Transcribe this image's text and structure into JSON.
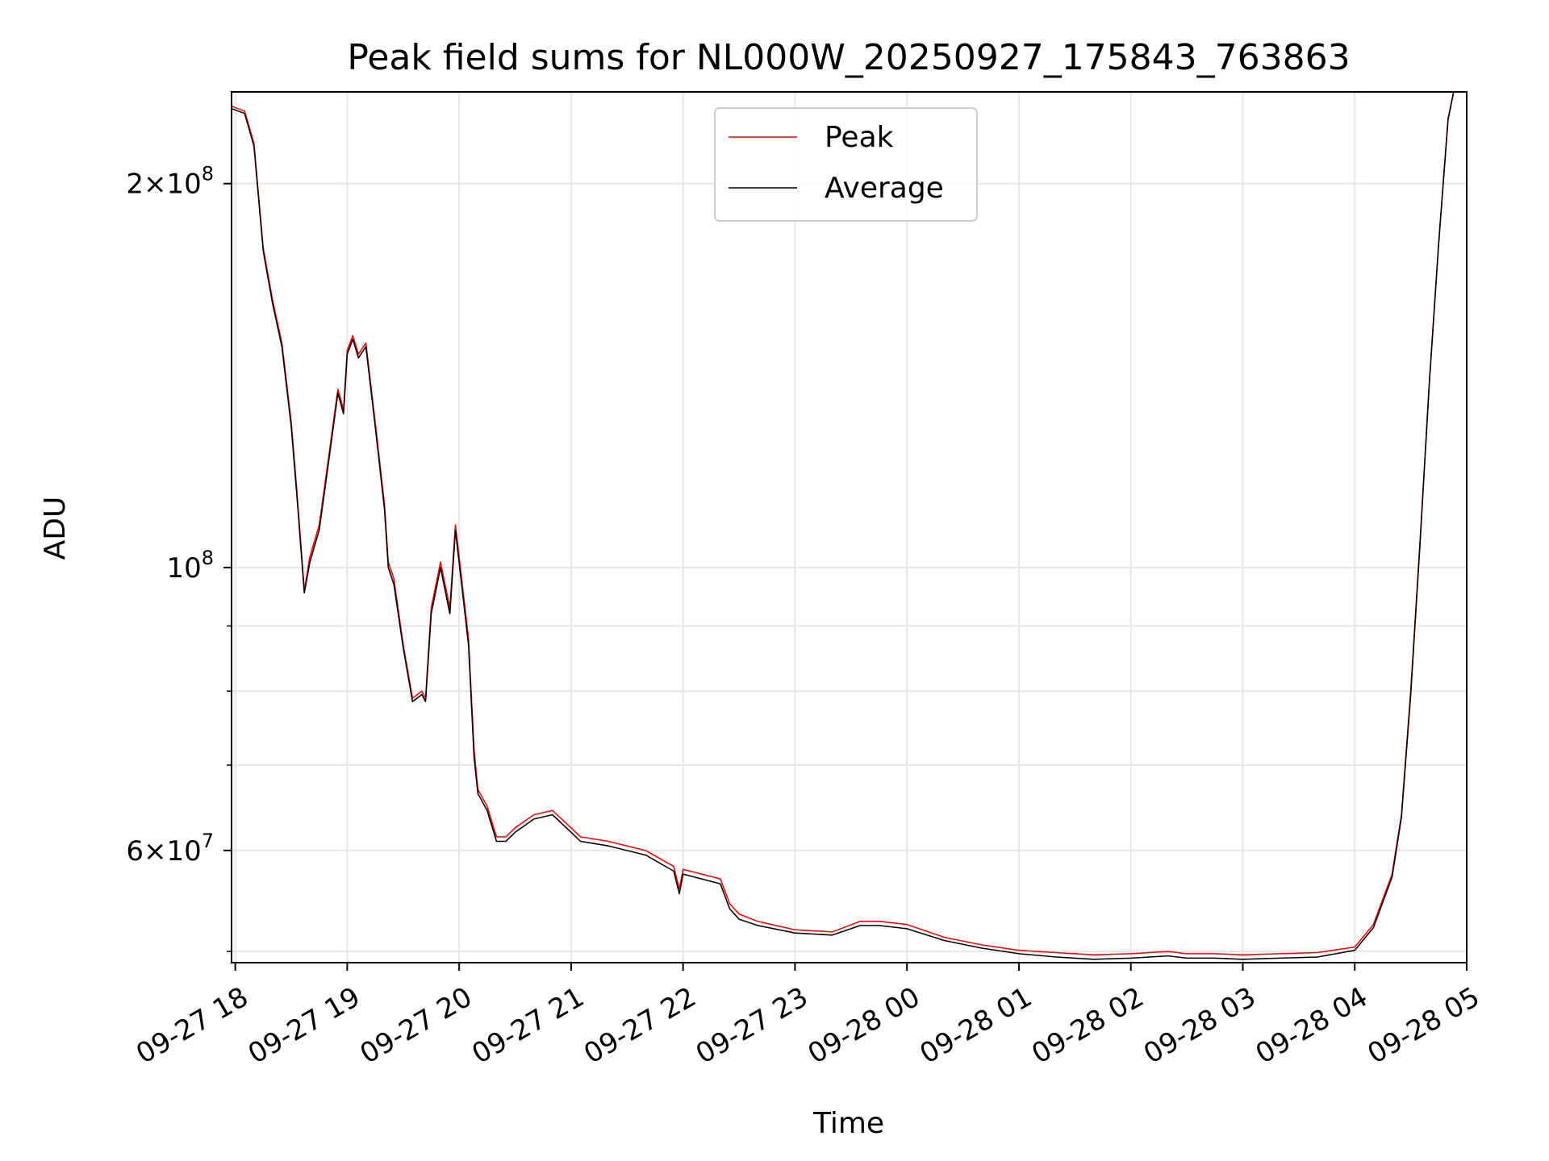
{
  "chart_data": {
    "type": "line",
    "title": "Peak field sums for NL000W_20250927_175843_763863",
    "xlabel": "Time",
    "ylabel": "ADU",
    "x_scale": "time",
    "y_scale": "log",
    "xlim": [
      "2025-09-27 17:58",
      "2025-09-28 05:00"
    ],
    "ylim": [
      49000000,
      236000000
    ],
    "grid": true,
    "legend_position": "top-center",
    "x_ticks": [
      {
        "value": "2025-09-27 18:00",
        "label": "09-27 18"
      },
      {
        "value": "2025-09-27 19:00",
        "label": "09-27 19"
      },
      {
        "value": "2025-09-27 20:00",
        "label": "09-27 20"
      },
      {
        "value": "2025-09-27 21:00",
        "label": "09-27 21"
      },
      {
        "value": "2025-09-27 22:00",
        "label": "09-27 22"
      },
      {
        "value": "2025-09-27 23:00",
        "label": "09-27 23"
      },
      {
        "value": "2025-09-28 00:00",
        "label": "09-28 00"
      },
      {
        "value": "2025-09-28 01:00",
        "label": "09-28 01"
      },
      {
        "value": "2025-09-28 02:00",
        "label": "09-28 02"
      },
      {
        "value": "2025-09-28 03:00",
        "label": "09-28 03"
      },
      {
        "value": "2025-09-28 04:00",
        "label": "09-28 04"
      },
      {
        "value": "2025-09-28 05:00",
        "label": "09-28 05"
      }
    ],
    "y_major_ticks": [
      {
        "value": 100000000,
        "base": "10",
        "exp": "8"
      },
      {
        "value": 200000000,
        "mant": "2",
        "base": "10",
        "exp": "8"
      },
      {
        "value": 60000000,
        "mant": "6",
        "base": "10",
        "exp": "7"
      }
    ],
    "y_minor_ticks": [
      50000000,
      70000000,
      80000000,
      90000000
    ],
    "series": [
      {
        "name": "Peak",
        "color": "#ff0000",
        "line_width": 1.2,
        "x": [
          "2025-09-27 17:58",
          "2025-09-27 18:05",
          "2025-09-27 18:10",
          "2025-09-27 18:15",
          "2025-09-27 18:20",
          "2025-09-27 18:25",
          "2025-09-27 18:30",
          "2025-09-27 18:33",
          "2025-09-27 18:37",
          "2025-09-27 18:40",
          "2025-09-27 18:45",
          "2025-09-27 18:50",
          "2025-09-27 18:55",
          "2025-09-27 18:58",
          "2025-09-27 19:00",
          "2025-09-27 19:03",
          "2025-09-27 19:06",
          "2025-09-27 19:10",
          "2025-09-27 19:15",
          "2025-09-27 19:20",
          "2025-09-27 19:22",
          "2025-09-27 19:25",
          "2025-09-27 19:30",
          "2025-09-27 19:35",
          "2025-09-27 19:40",
          "2025-09-27 19:42",
          "2025-09-27 19:45",
          "2025-09-27 19:50",
          "2025-09-27 19:55",
          "2025-09-27 19:58",
          "2025-09-27 20:05",
          "2025-09-27 20:08",
          "2025-09-27 20:10",
          "2025-09-27 20:15",
          "2025-09-27 20:20",
          "2025-09-27 20:25",
          "2025-09-27 20:30",
          "2025-09-27 20:40",
          "2025-09-27 20:50",
          "2025-09-27 21:00",
          "2025-09-27 21:05",
          "2025-09-27 21:20",
          "2025-09-27 21:40",
          "2025-09-27 21:55",
          "2025-09-27 21:58",
          "2025-09-27 22:00",
          "2025-09-27 22:20",
          "2025-09-27 22:25",
          "2025-09-27 22:30",
          "2025-09-27 22:40",
          "2025-09-27 23:00",
          "2025-09-27 23:20",
          "2025-09-27 23:35",
          "2025-09-27 23:45",
          "2025-09-28 00:00",
          "2025-09-28 00:20",
          "2025-09-28 00:40",
          "2025-09-28 01:00",
          "2025-09-28 01:20",
          "2025-09-28 01:40",
          "2025-09-28 02:00",
          "2025-09-28 02:20",
          "2025-09-28 02:30",
          "2025-09-28 02:45",
          "2025-09-28 03:00",
          "2025-09-28 03:20",
          "2025-09-28 03:40",
          "2025-09-28 04:00",
          "2025-09-28 04:10",
          "2025-09-28 04:20",
          "2025-09-28 04:25",
          "2025-09-28 04:30",
          "2025-09-28 04:35",
          "2025-09-28 04:40",
          "2025-09-28 04:45",
          "2025-09-28 04:50",
          "2025-09-28 04:53"
        ],
        "y": [
          230000000,
          228000000,
          215000000,
          178000000,
          162000000,
          150000000,
          130000000,
          115000000,
          96000000,
          102000000,
          108000000,
          122000000,
          138000000,
          133000000,
          148000000,
          152000000,
          147000000,
          150000000,
          130000000,
          112000000,
          101000000,
          98000000,
          87000000,
          79000000,
          80000000,
          79000000,
          93000000,
          101000000,
          93000000,
          108000000,
          88000000,
          72000000,
          67000000,
          65000000,
          61500000,
          61500000,
          62500000,
          64000000,
          64500000,
          62500000,
          61500000,
          61000000,
          60000000,
          58300000,
          56000000,
          58000000,
          57000000,
          54500000,
          53500000,
          52800000,
          52000000,
          51800000,
          52800000,
          52800000,
          52500000,
          51300000,
          50600000,
          50100000,
          49900000,
          49700000,
          49800000,
          50000000,
          49800000,
          49800000,
          49700000,
          49800000,
          49900000,
          50400000,
          52500000,
          57500000,
          64000000,
          80000000,
          105000000,
          140000000,
          180000000,
          225000000,
          236000000
        ]
      },
      {
        "name": "Average",
        "color": "#000000",
        "line_width": 1.2,
        "x": [
          "2025-09-27 17:58",
          "2025-09-27 18:05",
          "2025-09-27 18:10",
          "2025-09-27 18:15",
          "2025-09-27 18:20",
          "2025-09-27 18:25",
          "2025-09-27 18:30",
          "2025-09-27 18:33",
          "2025-09-27 18:37",
          "2025-09-27 18:40",
          "2025-09-27 18:45",
          "2025-09-27 18:50",
          "2025-09-27 18:55",
          "2025-09-27 18:58",
          "2025-09-27 19:00",
          "2025-09-27 19:03",
          "2025-09-27 19:06",
          "2025-09-27 19:10",
          "2025-09-27 19:15",
          "2025-09-27 19:20",
          "2025-09-27 19:22",
          "2025-09-27 19:25",
          "2025-09-27 19:30",
          "2025-09-27 19:35",
          "2025-09-27 19:40",
          "2025-09-27 19:42",
          "2025-09-27 19:45",
          "2025-09-27 19:50",
          "2025-09-27 19:55",
          "2025-09-27 19:58",
          "2025-09-27 20:05",
          "2025-09-27 20:08",
          "2025-09-27 20:10",
          "2025-09-27 20:15",
          "2025-09-27 20:20",
          "2025-09-27 20:25",
          "2025-09-27 20:30",
          "2025-09-27 20:40",
          "2025-09-27 20:50",
          "2025-09-27 21:00",
          "2025-09-27 21:05",
          "2025-09-27 21:20",
          "2025-09-27 21:40",
          "2025-09-27 21:55",
          "2025-09-27 21:58",
          "2025-09-27 22:00",
          "2025-09-27 22:20",
          "2025-09-27 22:25",
          "2025-09-27 22:30",
          "2025-09-27 22:40",
          "2025-09-27 23:00",
          "2025-09-27 23:20",
          "2025-09-27 23:35",
          "2025-09-27 23:45",
          "2025-09-28 00:00",
          "2025-09-28 00:20",
          "2025-09-28 00:40",
          "2025-09-28 01:00",
          "2025-09-28 01:20",
          "2025-09-28 01:40",
          "2025-09-28 02:00",
          "2025-09-28 02:20",
          "2025-09-28 02:30",
          "2025-09-28 02:45",
          "2025-09-28 03:00",
          "2025-09-28 03:20",
          "2025-09-28 03:40",
          "2025-09-28 04:00",
          "2025-09-28 04:10",
          "2025-09-28 04:20",
          "2025-09-28 04:25",
          "2025-09-28 04:30",
          "2025-09-28 04:35",
          "2025-09-28 04:40",
          "2025-09-28 04:45",
          "2025-09-28 04:50",
          "2025-09-28 04:53"
        ],
        "y": [
          229000000,
          227000000,
          214000000,
          177000000,
          161000000,
          149000000,
          129000000,
          114000000,
          95500000,
          101000000,
          107000000,
          121000000,
          137000000,
          132000000,
          147000000,
          151000000,
          146000000,
          149000000,
          129000000,
          111000000,
          100000000,
          97000000,
          86500000,
          78500000,
          79500000,
          78500000,
          92000000,
          100000000,
          92000000,
          107000000,
          87000000,
          71000000,
          66500000,
          64500000,
          61000000,
          61000000,
          62000000,
          63500000,
          64000000,
          62000000,
          61000000,
          60500000,
          59500000,
          57800000,
          55500000,
          57500000,
          56500000,
          54000000,
          53000000,
          52400000,
          51700000,
          51500000,
          52400000,
          52400000,
          52100000,
          51000000,
          50300000,
          49800000,
          49500000,
          49300000,
          49400000,
          49600000,
          49400000,
          49400000,
          49300000,
          49400000,
          49500000,
          50100000,
          52200000,
          57200000,
          63700000,
          79500000,
          104500000,
          139500000,
          179500000,
          224500000,
          236000000
        ]
      }
    ]
  }
}
